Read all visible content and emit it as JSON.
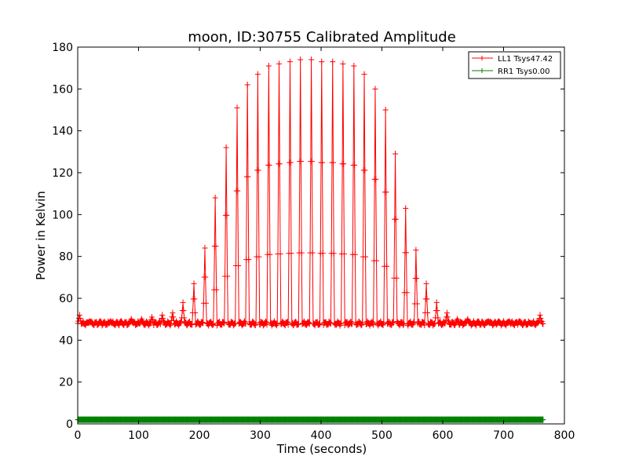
{
  "chart_data": {
    "type": "line",
    "title": "moon, ID:30755 Calibrated Amplitude",
    "xlabel": "Time (seconds)",
    "ylabel": "Power in Kelvin",
    "xlim": [
      0,
      800
    ],
    "ylim": [
      0,
      180
    ],
    "xticks": [
      0,
      100,
      200,
      300,
      400,
      500,
      600,
      700,
      800
    ],
    "yticks": [
      0,
      20,
      40,
      60,
      80,
      100,
      120,
      140,
      160,
      180
    ],
    "grid": false,
    "legend_position": "top-right",
    "series": [
      {
        "name": "LL1 Tsys47.42",
        "color": "#ff0000",
        "marker": "+",
        "baseline": 48,
        "x_range": [
          0,
          765
        ],
        "peak_spacing": 17,
        "peaks": [
          [
            3,
            52
          ],
          [
            20,
            49
          ],
          [
            37,
            49
          ],
          [
            54,
            49
          ],
          [
            71,
            49
          ],
          [
            88,
            50
          ],
          [
            105,
            50
          ],
          [
            122,
            51
          ],
          [
            139,
            52
          ],
          [
            156,
            53
          ],
          [
            173,
            58
          ],
          [
            191,
            67
          ],
          [
            209,
            84
          ],
          [
            226,
            108
          ],
          [
            244,
            132
          ],
          [
            262,
            151
          ],
          [
            279,
            162
          ],
          [
            296,
            167
          ],
          [
            314,
            171
          ],
          [
            331,
            172
          ],
          [
            349,
            173
          ],
          [
            366,
            174
          ],
          [
            384,
            174
          ],
          [
            401,
            173
          ],
          [
            419,
            173
          ],
          [
            436,
            172
          ],
          [
            454,
            171
          ],
          [
            471,
            167
          ],
          [
            489,
            160
          ],
          [
            506,
            150
          ],
          [
            522,
            129
          ],
          [
            539,
            103
          ],
          [
            556,
            83
          ],
          [
            573,
            67
          ],
          [
            590,
            58
          ],
          [
            607,
            53
          ],
          [
            624,
            50
          ],
          [
            641,
            50
          ],
          [
            658,
            49
          ],
          [
            675,
            49
          ],
          [
            692,
            49
          ],
          [
            709,
            49
          ],
          [
            726,
            49
          ],
          [
            743,
            48
          ],
          [
            760,
            52
          ]
        ]
      },
      {
        "name": "RR1 Tsys0.00",
        "color": "#008000",
        "marker": "+",
        "baseline": 2,
        "x_range": [
          0,
          765
        ]
      }
    ]
  }
}
